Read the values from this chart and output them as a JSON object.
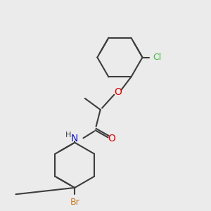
{
  "bg_color": "#ebebeb",
  "bond_color": "#3d3d3d",
  "bond_width": 1.5,
  "O_color": "#e00000",
  "N_color": "#1010d0",
  "Cl_color": "#3db83d",
  "Br_color": "#c87820",
  "H_color": "#3d3d3d",
  "font_size_atom": 9,
  "font_size_small": 8,
  "xlim": [
    0,
    10
  ],
  "ylim": [
    0,
    10
  ]
}
